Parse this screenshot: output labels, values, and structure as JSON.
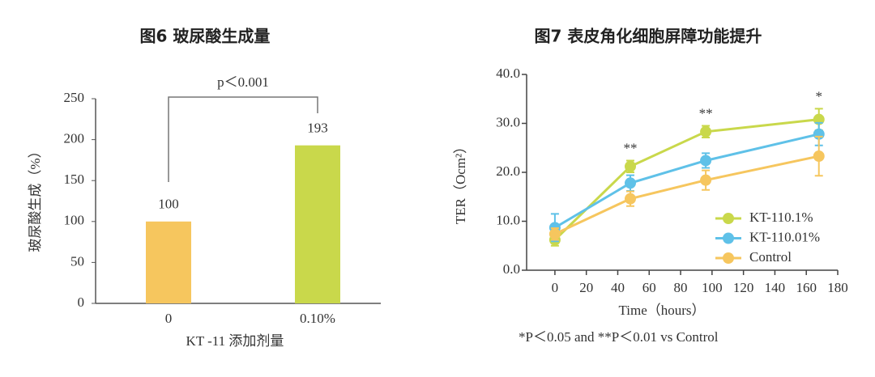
{
  "chart_data": [
    {
      "type": "bar",
      "title": "图6 玻尿酸生成量",
      "y_label": "玻尿酸生成（%）",
      "x_label": "KT -11 添加剂量",
      "categories": [
        "0",
        "0.10%"
      ],
      "values": [
        100,
        193
      ],
      "colors": [
        "#f6c65e",
        "#c9d84b"
      ],
      "ylim": [
        0,
        250
      ],
      "yticks": [
        0,
        50,
        100,
        150,
        200,
        250
      ],
      "annotation": "p＜0.001"
    },
    {
      "type": "line",
      "title": "图7 表皮角化细胞屏障功能提升",
      "y_label": "TER（Ocm²）",
      "x_label": "Time（hours）",
      "x": [
        0,
        48,
        96,
        168
      ],
      "series": [
        {
          "name": "KT-110.1%",
          "color": "#c9d84b",
          "values": [
            6.2,
            21.2,
            28.3,
            30.8
          ],
          "errors": [
            1.2,
            1.2,
            1.2,
            2.2
          ]
        },
        {
          "name": "KT-110.01%",
          "color": "#5fc1e8",
          "values": [
            8.7,
            17.8,
            22.4,
            27.8
          ],
          "errors": [
            2.8,
            1.6,
            1.5,
            2.3
          ]
        },
        {
          "name": "Control",
          "color": "#f6c65e",
          "values": [
            7.4,
            14.6,
            18.4,
            23.3
          ],
          "errors": [
            1.2,
            1.5,
            2.0,
            4.0
          ]
        }
      ],
      "significance": [
        "",
        "**",
        "**",
        "*"
      ],
      "xlim": [
        -18,
        180
      ],
      "xticks": [
        0,
        20,
        40,
        60,
        80,
        100,
        120,
        140,
        160,
        180
      ],
      "ylim": [
        0,
        40
      ],
      "yticks": [
        {
          "value": 0,
          "label": "0.0"
        },
        {
          "value": 10,
          "label": "10.0"
        },
        {
          "value": 20,
          "label": "20.0"
        },
        {
          "value": 30,
          "label": "30.0"
        },
        {
          "value": 40,
          "label": "40.0"
        }
      ],
      "legend": "lower right",
      "footnote": "*P＜0.05 and **P＜0.01 vs Control"
    }
  ]
}
